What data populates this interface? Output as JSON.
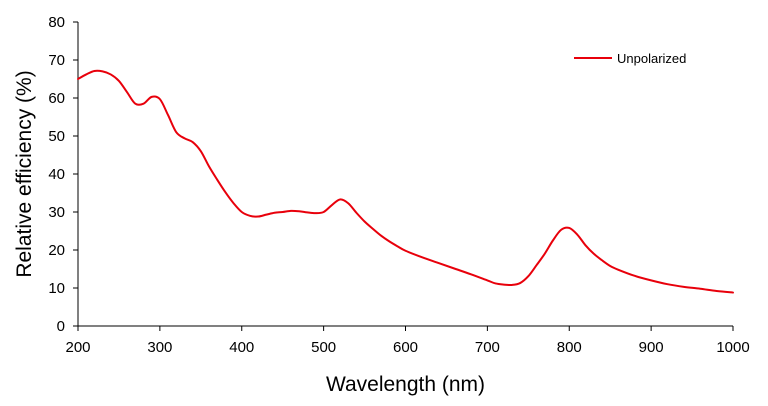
{
  "chart_data": {
    "type": "line",
    "title": "",
    "xlabel": "Wavelength (nm)",
    "ylabel": "Relative efficiency (%)",
    "xlim": [
      200,
      1000
    ],
    "ylim": [
      0,
      80
    ],
    "x_ticks": [
      200,
      300,
      400,
      500,
      600,
      700,
      800,
      900,
      1000
    ],
    "y_ticks": [
      0,
      10,
      20,
      30,
      40,
      50,
      60,
      70,
      80
    ],
    "grid": false,
    "legend_position": "top-right",
    "series": [
      {
        "name": "Unpolarized",
        "color": "#e8000b",
        "x": [
          200,
          210,
          220,
          230,
          240,
          250,
          260,
          270,
          280,
          290,
          300,
          310,
          320,
          330,
          340,
          350,
          360,
          370,
          380,
          390,
          400,
          410,
          420,
          430,
          440,
          450,
          460,
          470,
          480,
          490,
          500,
          510,
          520,
          530,
          540,
          550,
          560,
          570,
          580,
          590,
          600,
          620,
          640,
          660,
          680,
          700,
          710,
          720,
          730,
          740,
          750,
          760,
          770,
          780,
          790,
          800,
          810,
          820,
          830,
          840,
          850,
          860,
          880,
          900,
          920,
          940,
          960,
          980,
          1000
        ],
        "y": [
          65,
          66.2,
          67.1,
          67.0,
          66.2,
          64.5,
          61.5,
          58.5,
          58.5,
          60.3,
          59.7,
          55.5,
          51.0,
          49.4,
          48.4,
          46.0,
          42.0,
          38.5,
          35.2,
          32.3,
          30.0,
          29.0,
          28.8,
          29.3,
          29.8,
          30.0,
          30.3,
          30.2,
          29.9,
          29.7,
          30.0,
          31.8,
          33.3,
          32.3,
          29.8,
          27.5,
          25.6,
          23.8,
          22.3,
          21.0,
          19.8,
          18.1,
          16.6,
          15.1,
          13.6,
          12.0,
          11.2,
          10.9,
          10.8,
          11.3,
          13.1,
          16.0,
          19.0,
          22.5,
          25.3,
          25.8,
          24.0,
          21.2,
          19.0,
          17.3,
          15.8,
          14.8,
          13.2,
          12.0,
          11.0,
          10.3,
          9.8,
          9.2,
          8.8
        ]
      }
    ]
  }
}
